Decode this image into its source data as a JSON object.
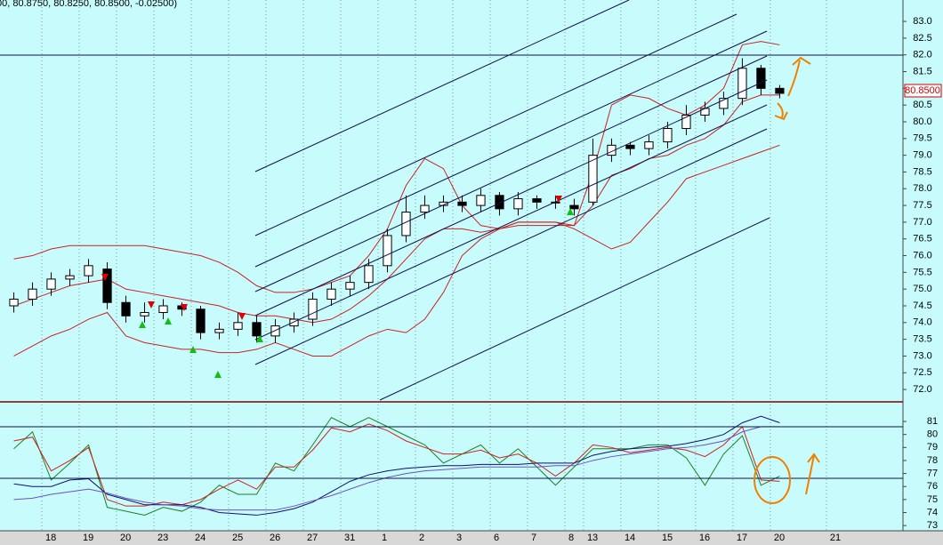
{
  "chart_data": [
    {
      "type": "candlestick",
      "header": "00, 80.8750, 80.8250, 80.8500, -0.02500)",
      "price_tag": "80.8500",
      "x": [
        -0.75,
        -0.25,
        0.25,
        0.75,
        1.25,
        1.75,
        2.25,
        2.75,
        3.25,
        3.75,
        4.25,
        4.75,
        5.25,
        5.75,
        6.25,
        6.75,
        7.25,
        7.75,
        8.25,
        8.75,
        9.25,
        9.75,
        10.25,
        10.75,
        11.25,
        11.75,
        12.25,
        12.75,
        13.25,
        13.75,
        14.25,
        14.75,
        15.25,
        15.75,
        16.25,
        16.75,
        17.25,
        17.75,
        18.25,
        18.75,
        19.25,
        19.75
      ],
      "open": [
        74.5,
        74.7,
        75.0,
        75.3,
        75.4,
        75.6,
        74.6,
        74.2,
        74.3,
        74.5,
        74.4,
        73.7,
        73.8,
        74.0,
        73.6,
        73.9,
        74.1,
        74.7,
        75.0,
        75.2,
        75.7,
        76.6,
        77.3,
        77.5,
        77.6,
        77.5,
        77.8,
        77.4,
        77.7,
        77.6,
        77.5,
        77.6,
        79.0,
        79.3,
        79.2,
        79.4,
        79.8,
        80.2,
        80.4,
        80.7,
        81.6,
        81.0
      ],
      "high": [
        74.9,
        75.2,
        75.5,
        75.6,
        75.9,
        75.8,
        74.8,
        74.6,
        74.7,
        74.6,
        74.5,
        74.0,
        74.3,
        74.2,
        74.1,
        74.3,
        74.9,
        75.2,
        75.4,
        75.9,
        76.8,
        77.8,
        77.8,
        77.8,
        77.8,
        78.0,
        77.9,
        77.9,
        77.8,
        77.8,
        77.7,
        79.5,
        79.5,
        79.4,
        79.6,
        80.0,
        80.5,
        80.6,
        80.9,
        81.9,
        81.7,
        81.1
      ],
      "low": [
        74.3,
        74.5,
        74.8,
        75.1,
        75.2,
        74.4,
        74.0,
        74.0,
        74.1,
        74.2,
        73.5,
        73.5,
        73.6,
        73.4,
        73.4,
        73.7,
        73.9,
        74.5,
        74.8,
        75.0,
        75.5,
        76.4,
        77.1,
        77.3,
        77.3,
        77.3,
        77.2,
        77.2,
        77.4,
        77.4,
        77.2,
        77.5,
        78.8,
        79.0,
        79.0,
        79.2,
        79.6,
        80.0,
        80.2,
        80.5,
        80.8,
        80.7
      ],
      "close": [
        74.7,
        75.0,
        75.3,
        75.4,
        75.7,
        74.6,
        74.2,
        74.3,
        74.5,
        74.4,
        73.7,
        73.8,
        74.0,
        73.6,
        73.9,
        74.1,
        74.7,
        75.0,
        75.2,
        75.7,
        76.6,
        77.3,
        77.5,
        77.6,
        77.5,
        77.8,
        77.4,
        77.7,
        77.6,
        77.6,
        77.4,
        79.0,
        79.3,
        79.2,
        79.4,
        79.8,
        80.2,
        80.4,
        80.7,
        81.6,
        81.0,
        80.85
      ],
      "overlays": [
        {
          "color": "#cc2020",
          "values": [
            75.9,
            76.0,
            76.2,
            76.3,
            76.3,
            76.3,
            76.3,
            76.3,
            76.2,
            76.1,
            76.0,
            75.8,
            75.5,
            75.1,
            74.9,
            74.9,
            75.0,
            75.2,
            75.4,
            76.0,
            76.8,
            78.1,
            78.9,
            78.6,
            77.5,
            76.9,
            76.8,
            76.9,
            76.9,
            76.9,
            76.9,
            78.5,
            80.5,
            80.8,
            80.7,
            80.4,
            80.2,
            80.5,
            81.0,
            82.3,
            82.4,
            82.3
          ]
        },
        {
          "color": "#cc2020",
          "values": [
            74.5,
            74.7,
            74.9,
            75.1,
            75.2,
            75.3,
            75.0,
            74.9,
            74.8,
            74.7,
            74.6,
            74.5,
            74.3,
            74.2,
            74.2,
            74.1,
            74.0,
            74.1,
            74.4,
            74.8,
            75.3,
            75.9,
            76.5,
            76.8,
            76.8,
            76.7,
            76.8,
            77.0,
            77.0,
            77.0,
            76.9,
            77.5,
            78.4,
            78.6,
            78.9,
            79.0,
            79.3,
            79.5,
            79.9,
            80.6,
            80.8,
            80.8
          ]
        },
        {
          "color": "#cc2020",
          "values": [
            73.0,
            73.3,
            73.6,
            73.8,
            74.1,
            74.3,
            73.6,
            73.4,
            73.3,
            73.2,
            73.2,
            73.1,
            73.1,
            73.2,
            73.4,
            73.2,
            73.0,
            73.0,
            73.3,
            73.6,
            73.8,
            73.7,
            74.1,
            74.9,
            76.0,
            76.5,
            76.8,
            77.0,
            77.0,
            77.0,
            76.8,
            76.5,
            76.2,
            76.4,
            77.0,
            77.6,
            78.3,
            78.5,
            78.7,
            78.9,
            79.1,
            79.3
          ]
        }
      ],
      "ylim": [
        71.63,
        83.64
      ],
      "yticks": [
        {
          "value": 72,
          "label": "72.0"
        },
        {
          "value": 72.5,
          "label": "72.5"
        },
        {
          "value": 73,
          "label": "73.0"
        },
        {
          "value": 73.5,
          "label": "73.5"
        },
        {
          "value": 74,
          "label": "74.0"
        },
        {
          "value": 74.5,
          "label": "74.5"
        },
        {
          "value": 75,
          "label": "75.0"
        },
        {
          "value": 75.5,
          "label": "75.5"
        },
        {
          "value": 76,
          "label": "76.0"
        },
        {
          "value": 76.5,
          "label": "76.5"
        },
        {
          "value": 77,
          "label": "77.0"
        },
        {
          "value": 77.5,
          "label": "77.5"
        },
        {
          "value": 78,
          "label": "78.0"
        },
        {
          "value": 78.5,
          "label": "78.5"
        },
        {
          "value": 79,
          "label": "79.0"
        },
        {
          "value": 79.5,
          "label": "79.5"
        },
        {
          "value": 80,
          "label": "80.0"
        },
        {
          "value": 80.5,
          "label": "80.5"
        },
        {
          "value": 81,
          "label": "81.0"
        },
        {
          "value": 81.5,
          "label": "81.5"
        },
        {
          "value": 82,
          "label": "82.0"
        },
        {
          "value": 82.5,
          "label": "82.5"
        },
        {
          "value": 83,
          "label": "83.0"
        }
      ],
      "xlim": [
        -1.12,
        23.05
      ]
    },
    {
      "type": "line",
      "x": [
        -0.75,
        -0.25,
        0.25,
        0.75,
        1.25,
        1.75,
        2.25,
        2.75,
        3.25,
        3.75,
        4.25,
        4.75,
        5.25,
        5.75,
        6.25,
        6.75,
        7.25,
        7.75,
        8.25,
        8.75,
        9.25,
        9.75,
        10.25,
        10.75,
        11.25,
        11.75,
        12.25,
        12.75,
        13.25,
        13.75,
        14.25,
        14.75,
        15.25,
        15.75,
        16.25,
        16.75,
        17.25,
        17.75,
        18.25,
        18.75,
        19.25,
        19.75
      ],
      "series": [
        {
          "color": "#208020",
          "values": [
            78.9,
            80.2,
            76.5,
            77.8,
            79.2,
            74.4,
            74.1,
            73.8,
            74.4,
            74.1,
            74.8,
            76.1,
            75.4,
            75.4,
            77.8,
            77.2,
            79.2,
            81.3,
            80.6,
            81.3,
            80.6,
            79.9,
            79.2,
            77.8,
            78.5,
            79.2,
            77.8,
            78.9,
            77.5,
            76.1,
            77.5,
            78.9,
            78.9,
            78.9,
            79.2,
            79.2,
            78.2,
            76.1,
            78.5,
            79.9,
            76.1,
            76.8
          ]
        },
        {
          "color": "#d02020",
          "values": [
            79.5,
            79.8,
            77.2,
            78.0,
            79.0,
            75.0,
            74.5,
            74.5,
            74.8,
            74.6,
            75.0,
            75.8,
            76.5,
            75.8,
            77.5,
            77.5,
            78.8,
            80.5,
            80.2,
            80.8,
            80.3,
            79.5,
            79.0,
            78.5,
            78.5,
            78.8,
            78.2,
            78.5,
            77.8,
            76.8,
            77.8,
            79.2,
            79.0,
            78.6,
            78.8,
            79.0,
            78.8,
            78.3,
            79.2,
            80.6,
            76.5,
            76.4
          ]
        },
        {
          "color": "#101070",
          "values": [
            76.2,
            76.0,
            76.0,
            76.5,
            76.6,
            75.4,
            75.0,
            74.6,
            74.6,
            74.6,
            74.4,
            74.0,
            73.9,
            73.8,
            74.0,
            74.3,
            74.8,
            75.6,
            76.4,
            76.9,
            77.2,
            77.4,
            77.5,
            77.6,
            77.6,
            77.7,
            77.7,
            77.7,
            77.8,
            77.8,
            77.8,
            78.4,
            78.7,
            78.9,
            79.0,
            79.1,
            79.3,
            79.6,
            80.0,
            80.9,
            81.4,
            80.9
          ]
        },
        {
          "color": "#7050c0",
          "values": [
            75.0,
            75.1,
            75.4,
            75.6,
            75.8,
            75.5,
            75.1,
            74.8,
            74.6,
            74.5,
            74.3,
            74.2,
            74.2,
            74.2,
            74.2,
            74.5,
            74.9,
            75.3,
            75.8,
            76.3,
            76.7,
            77.0,
            77.2,
            77.3,
            77.4,
            77.5,
            77.5,
            77.5,
            77.5,
            77.6,
            77.6,
            78.0,
            78.3,
            78.5,
            78.7,
            78.9,
            79.0,
            79.2,
            79.5,
            80.2,
            80.6,
            80.6
          ]
        }
      ],
      "ylim": [
        72.6,
        82.3
      ],
      "yticks": [
        73,
        74,
        75,
        76,
        77,
        78,
        79,
        80,
        81
      ],
      "xlim": [
        -1.12,
        23.05
      ],
      "xticks": [
        {
          "value": 0,
          "label": "18"
        },
        {
          "value": 1,
          "label": "19"
        },
        {
          "value": 2,
          "label": "20"
        },
        {
          "value": 3,
          "label": "23"
        },
        {
          "value": 4,
          "label": "24"
        },
        {
          "value": 5,
          "label": "25"
        },
        {
          "value": 6,
          "label": "26"
        },
        {
          "value": 7,
          "label": "27"
        },
        {
          "value": 8,
          "label": "31"
        },
        {
          "value": 9,
          "label": "1"
        },
        {
          "value": 10,
          "label": "2"
        },
        {
          "value": 11,
          "label": "3"
        },
        {
          "value": 12,
          "label": "6"
        },
        {
          "value": 13,
          "label": "7"
        },
        {
          "value": 14,
          "label": "8"
        },
        {
          "value": 14.5,
          "label": "13"
        },
        {
          "value": 15.5,
          "label": "14"
        },
        {
          "value": 16.5,
          "label": "15"
        },
        {
          "value": 17.5,
          "label": "16"
        },
        {
          "value": 18.5,
          "label": "17"
        },
        {
          "value": 19.5,
          "label": "20"
        },
        {
          "value": 21,
          "label": "21"
        }
      ]
    }
  ]
}
